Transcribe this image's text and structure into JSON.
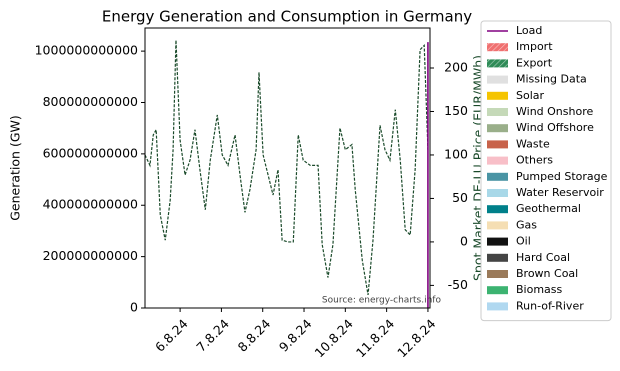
{
  "chart_data": {
    "type": "line",
    "title": "Energy Generation and Consumption in Germany",
    "ylabel": "Generation (GW)",
    "y2label": "Spot Market DE-LU Price (EUR/MWh)",
    "annotation": "Source: energy-charts.info",
    "xlim": [
      5.15,
      12.05
    ],
    "xticks": [
      {
        "value": 6,
        "label": "6.8.24"
      },
      {
        "value": 7,
        "label": "7.8.24"
      },
      {
        "value": 8,
        "label": "8.8.24"
      },
      {
        "value": 9,
        "label": "9.8.24"
      },
      {
        "value": 10,
        "label": "10.8.24"
      },
      {
        "value": 11,
        "label": "11.8.24"
      },
      {
        "value": 12,
        "label": "12.8.24"
      }
    ],
    "ylim": [
      0,
      1090000000000
    ],
    "yticks": [
      0,
      200000000000,
      400000000000,
      600000000000,
      800000000000,
      1000000000000
    ],
    "y2lim": [
      -76,
      246
    ],
    "y2ticks": [
      -50,
      0,
      50,
      100,
      150,
      200
    ],
    "series": [
      {
        "name": "Load",
        "color": "#800080",
        "style": "line",
        "x": [
          12.0,
          12.0
        ],
        "values": [
          0,
          1035000000000
        ]
      },
      {
        "name": "Import",
        "color": "#f07070",
        "style": "hatch",
        "values": []
      },
      {
        "name": "Export",
        "color": "#2e8b57",
        "style": "hatch",
        "values": []
      },
      {
        "name": "Missing Data",
        "color": "#e0e0e0",
        "style": "patch",
        "values": []
      },
      {
        "name": "Solar",
        "color": "#f5c400",
        "style": "patch",
        "values": []
      },
      {
        "name": "Wind Onshore",
        "color": "#c5d9b8",
        "style": "patch",
        "values": []
      },
      {
        "name": "Wind Offshore",
        "color": "#9aaf8a",
        "style": "patch",
        "values": []
      },
      {
        "name": "Waste",
        "color": "#c8624a",
        "style": "patch",
        "values": []
      },
      {
        "name": "Others",
        "color": "#f8bfc8",
        "style": "patch",
        "values": []
      },
      {
        "name": "Pumped Storage",
        "color": "#4a94a4",
        "style": "patch",
        "values": []
      },
      {
        "name": "Water Reservoir",
        "color": "#a8d8e8",
        "style": "patch",
        "values": []
      },
      {
        "name": "Geothermal",
        "color": "#00808a",
        "style": "patch",
        "values": []
      },
      {
        "name": "Gas",
        "color": "#f5deb3",
        "style": "patch",
        "values": []
      },
      {
        "name": "Oil",
        "color": "#111111",
        "style": "patch",
        "values": []
      },
      {
        "name": "Hard Coal",
        "color": "#444444",
        "style": "patch",
        "values": []
      },
      {
        "name": "Brown Coal",
        "color": "#9a7a5a",
        "style": "patch",
        "values": []
      },
      {
        "name": "Biomass",
        "color": "#3cb371",
        "style": "patch",
        "values": []
      },
      {
        "name": "Run-of-River",
        "color": "#b0d8f0",
        "style": "patch",
        "values": []
      },
      {
        "color": "#1a4a2a",
        "style": "dashed",
        "axis": "y2",
        "x": [
          5.15,
          5.27,
          5.35,
          5.42,
          5.52,
          5.64,
          5.76,
          5.83,
          5.9,
          6.0,
          6.12,
          6.24,
          6.36,
          6.48,
          6.61,
          6.73,
          6.9,
          7.02,
          7.16,
          7.33,
          7.45,
          7.57,
          7.69,
          7.84,
          7.91,
          8.01,
          8.13,
          8.25,
          8.37,
          8.47,
          8.61,
          8.74,
          8.86,
          8.98,
          9.15,
          9.34,
          9.44,
          9.58,
          9.7,
          9.87,
          10.0,
          10.16,
          10.24,
          10.41,
          10.55,
          10.67,
          10.84,
          10.96,
          11.08,
          11.21,
          11.33,
          11.45,
          11.57,
          11.69,
          11.81,
          11.91,
          12.0
        ],
        "values": [
          100,
          88,
          123,
          129,
          31,
          2,
          48,
          106,
          232,
          117,
          77,
          94,
          129,
          83,
          37,
          94,
          146,
          100,
          88,
          123,
          77,
          34,
          60,
          106,
          195,
          100,
          77,
          54,
          83,
          2,
          0,
          0,
          123,
          94,
          88,
          88,
          -3,
          -41,
          -3,
          131,
          106,
          112,
          60,
          -21,
          -61,
          2,
          134,
          106,
          94,
          152,
          94,
          14,
          8,
          83,
          221,
          226,
          106
        ]
      }
    ]
  }
}
